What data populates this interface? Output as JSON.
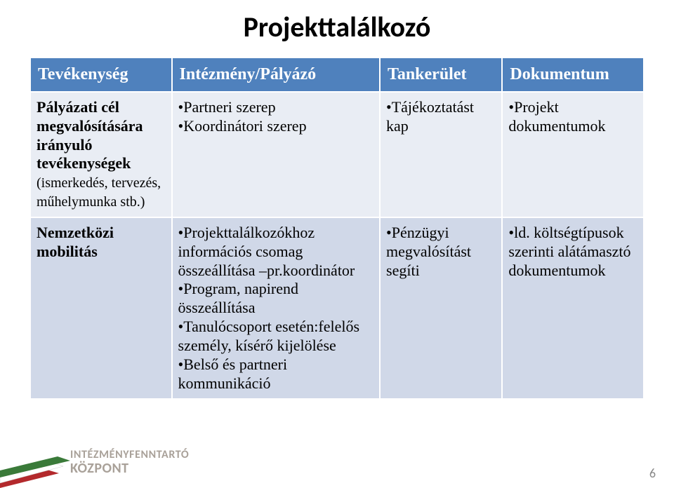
{
  "title": "Projekttalálkozó",
  "pageNumber": "6",
  "brand": {
    "line1": "INTÉZMÉNYFENNTARTÓ",
    "line2": "KÖZPONT"
  },
  "table": {
    "headers": [
      "Tevékenység",
      "Intézmény/Pályázó",
      "Tankerület",
      "Dokumentum"
    ],
    "rows": [
      {
        "c0_html": "Pályázati cél megvalósítására irányuló tevékenységek<br><span class=\"sub\">(ismerkedés, tervezés, műhelymunka stb.)</span>",
        "c1_html": "•Partneri szerep<br>•Koordinátori szerep",
        "c2_html": "•Tájékoztatást kap",
        "c3_html": "•Projekt dokumentumok"
      },
      {
        "c0_html": "Nemzetközi mobilitás",
        "c1_html": "•Projekttalálkozókhoz információs csomag összeállítása –pr.koordinátor<br>•Program, napirend összeállítása<br>•Tanulócsoport esetén:felelős személy, kísérő kijelölése<br>•Belső és partneri kommunikáció",
        "c2_html": "•Pénzügyi megvalósítást segíti",
        "c3_html": "•ld. költségtípusok szerinti alátámasztó dokumentumok"
      }
    ]
  },
  "colors": {
    "header_bg": "#4f81bd",
    "row_bg": "#e9edf4",
    "row_alt_bg": "#d0d8e8"
  }
}
